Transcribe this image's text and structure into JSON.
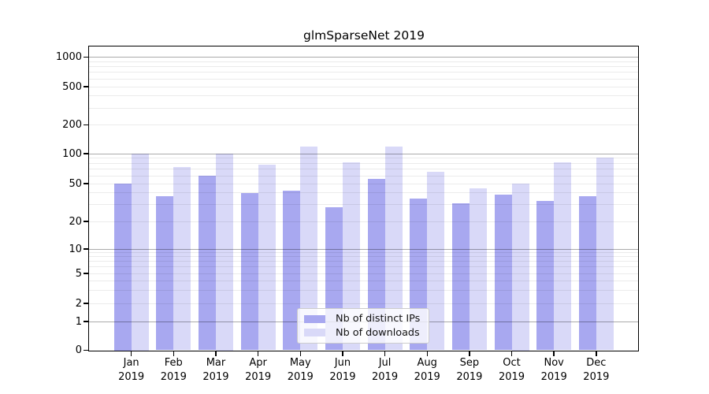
{
  "chart_data": {
    "type": "bar",
    "title": "glmSparseNet 2019",
    "categories": [
      "Jan",
      "Feb",
      "Mar",
      "Apr",
      "May",
      "Jun",
      "Jul",
      "Aug",
      "Sep",
      "Oct",
      "Nov",
      "Dec"
    ],
    "year_label": "2019",
    "series": [
      {
        "name": "Nb of distinct IPs",
        "color": "#a8a8f0",
        "values": [
          50,
          37,
          60,
          40,
          42,
          28,
          56,
          35,
          31,
          38,
          33,
          37
        ]
      },
      {
        "name": "Nb of downloads",
        "color": "#d9d9f8",
        "values": [
          100,
          74,
          100,
          78,
          118,
          82,
          118,
          66,
          45,
          50,
          82,
          92
        ]
      }
    ],
    "yticks": [
      0,
      1,
      2,
      5,
      10,
      20,
      50,
      100,
      200,
      500,
      1000
    ],
    "major_gridlines": [
      1,
      10,
      100,
      1000
    ],
    "minor_gridlines": [
      3,
      4,
      6,
      7,
      8,
      9,
      30,
      40,
      60,
      70,
      80,
      90,
      300,
      400,
      600,
      700,
      800,
      900
    ],
    "ylim": [
      0,
      1000
    ],
    "scale": "symlog",
    "grid": true,
    "grid_above_bars": true,
    "legend_position": "lower center"
  }
}
